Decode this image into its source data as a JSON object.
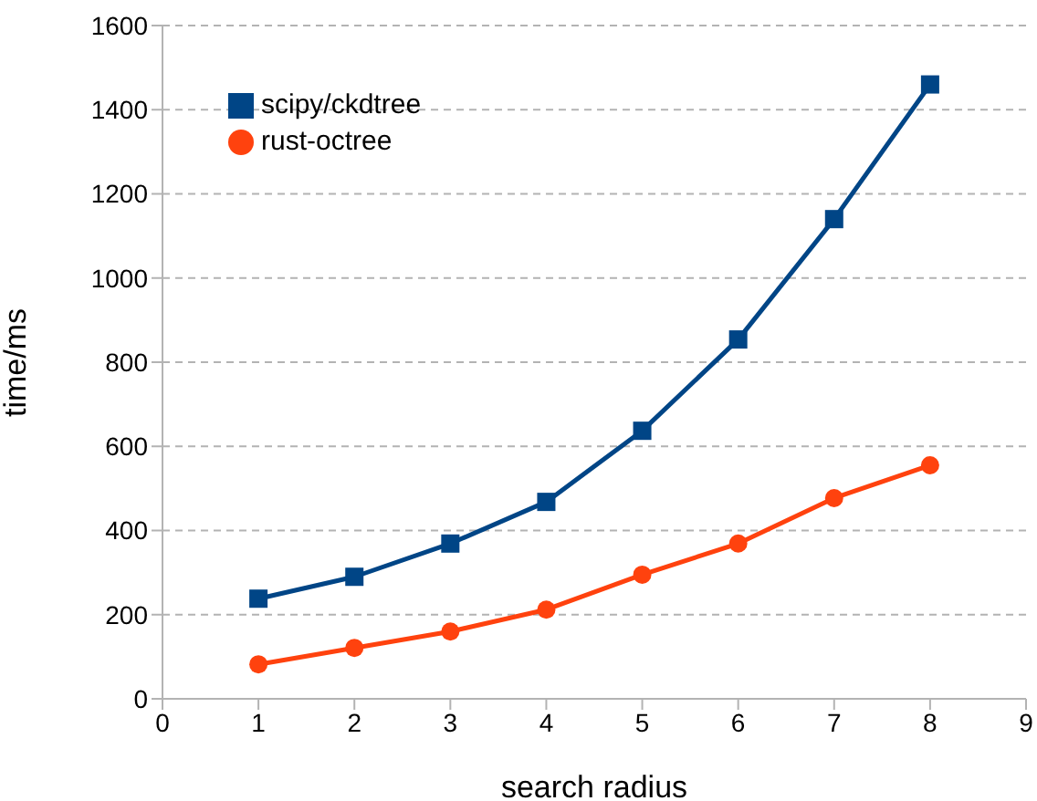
{
  "chart_data": {
    "type": "line",
    "xlabel": "search radius",
    "ylabel": "time/ms",
    "x": [
      1,
      2,
      3,
      4,
      5,
      6,
      7,
      8
    ],
    "xlim": [
      0,
      9
    ],
    "xticks": [
      0,
      1,
      2,
      3,
      4,
      5,
      6,
      7,
      8,
      9
    ],
    "ylim": [
      0,
      1600
    ],
    "yticks": [
      0,
      200,
      400,
      600,
      800,
      1000,
      1200,
      1400,
      1600
    ],
    "grid": "y",
    "legend": "top left",
    "line_style": "solid",
    "series": [
      {
        "name": "scipy/ckdtree",
        "color": "#004586",
        "marker": "square",
        "values": [
          238,
          290,
          369,
          468,
          637,
          854,
          1140,
          1460
        ]
      },
      {
        "name": "rust-octree",
        "color": "#ff420e",
        "marker": "circle",
        "values": [
          82,
          121,
          160,
          212,
          295,
          369,
          477,
          555
        ]
      }
    ]
  }
}
